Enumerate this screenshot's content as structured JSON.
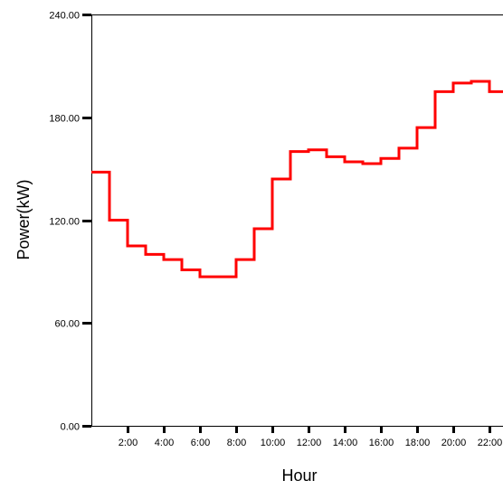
{
  "chart_data": {
    "type": "line",
    "step": true,
    "title": "",
    "xlabel": "Hour",
    "ylabel": "Power(kW)",
    "ylim": [
      0,
      240
    ],
    "xlim": [
      0,
      23
    ],
    "yticks": [
      "0.00",
      "60.00",
      "120.00",
      "180.00",
      "240.00"
    ],
    "ytick_values": [
      0,
      60,
      120,
      180,
      240
    ],
    "xticks": [
      "2:00",
      "4:00",
      "6:00",
      "8:00",
      "10:00",
      "12:00",
      "14:00",
      "16:00",
      "18:00",
      "20:00",
      "22:00"
    ],
    "xtick_values": [
      2,
      4,
      6,
      8,
      10,
      12,
      14,
      16,
      18,
      20,
      22
    ],
    "grid": false,
    "series": [
      {
        "color": "#ff0000",
        "x": [
          0,
          1,
          2,
          3,
          4,
          5,
          6,
          7,
          8,
          9,
          10,
          11,
          12,
          13,
          14,
          15,
          16,
          17,
          18,
          19,
          20,
          21,
          22
        ],
        "values": [
          148,
          120,
          105,
          100,
          97,
          91,
          87,
          87,
          97,
          115,
          144,
          160,
          161,
          157,
          154,
          153,
          156,
          162,
          174,
          195,
          200,
          201,
          195
        ]
      }
    ]
  }
}
